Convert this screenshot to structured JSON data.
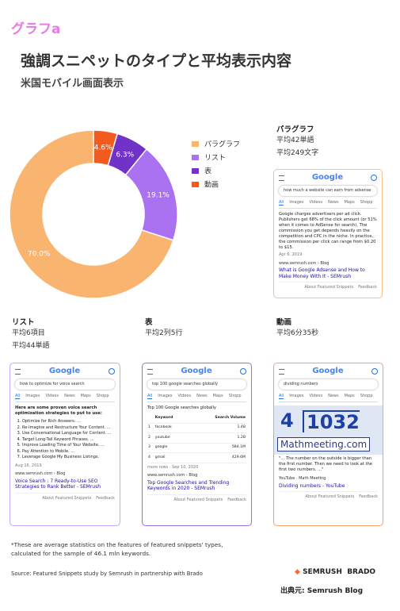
{
  "header": {
    "logo": "グラフa",
    "title": "強調スニペットのタイプと平均表示内容",
    "subtitle": "米国モバイル画面表示"
  },
  "chart_data": {
    "type": "pie",
    "donut": true,
    "categories": [
      "パラグラフ",
      "リスト",
      "表",
      "動画"
    ],
    "values": [
      70.0,
      19.1,
      6.3,
      4.6
    ],
    "value_labels": [
      "70.0%",
      "19.1%",
      "6.3%",
      "4.6%"
    ],
    "colors": [
      "#f9b470",
      "#aa72f0",
      "#7132c8",
      "#f25a1e"
    ]
  },
  "google": {
    "logo": "Google",
    "tabs": [
      "All",
      "Images",
      "Videos",
      "News",
      "Maps",
      "Shopp"
    ],
    "about": "About Featured Snippets",
    "feedback": "Feedback"
  },
  "panels": [
    {
      "title": "パラグラフ",
      "stats": [
        "平均42単語",
        "平均249文字"
      ],
      "card": {
        "query": "how much a website can earn from adsense",
        "text": "Google charges advertisers per ad click. Publishers get 68% of the click amount (or 51% when it comes to AdSense for search). The commission you get depends heavily on the competition and CPC in the niche. In practice, the commission per click can range from $0.20 to $15.",
        "date": "Apr 6, 2019",
        "url": "www.semrush.com › Blog",
        "link": "What is Google Adsense and How to Make Money With It - SEMrush"
      }
    },
    {
      "title": "リスト",
      "stats": [
        "平均6項目",
        "平均44単語"
      ],
      "card": {
        "query": "how to optimize for voice search",
        "text": "Here are some proven voice search optimization strategies to put to use:",
        "items": [
          "Optimize for Rich Answers. ...",
          "Re-Imagine and Restructure Your Content. ...",
          "Use Conversational Language for Content. ...",
          "Target Long-Tail Keyword Phrases. ...",
          "Improve Loading Time of Your Website. ...",
          "Pay Attention to Mobile. ...",
          "Leverage Google My Business Listings."
        ],
        "date": "Aug 16, 2019",
        "url": "www.semrush.com › Blog",
        "link": "Voice Search : 7 Ready-to-Use SEO Strategies to Rank Better - SEMrush"
      }
    },
    {
      "title": "表",
      "stats": [
        "平均2列5行"
      ],
      "card": {
        "query": "top 100 google searches globally",
        "text": "Top 100 Google searches globally",
        "table_header": [
          "Keyword",
          "Search Volume"
        ],
        "table_rows": [
          [
            "1",
            "facebook",
            "1.4B"
          ],
          [
            "2",
            "youtube",
            "1.2B"
          ],
          [
            "3",
            "google",
            "584.1M"
          ],
          [
            "4",
            "gmail",
            "429.6M"
          ]
        ],
        "date": "more rows · Sep 10, 2020",
        "url": "www.semrush.com › Blog",
        "link": "Top Google Searches and Trending Keywords in 2020 - SEMrush"
      }
    },
    {
      "title": "動画",
      "stats": [
        "平均6分35秒"
      ],
      "card": {
        "query": "dividing numbers",
        "video": [
          "4",
          "1032",
          "Mathmeeting.com"
        ],
        "text": "\"... The number on the outside is bigger than the first number. Then we need to look at the first two numbers. ...\"",
        "url": "YouTube · Math Meeting",
        "link": "Dividing numbers - YouTube"
      }
    }
  ],
  "footer": {
    "note": "*These are average statistics on the features of featured snippets' types, calculated for the sample of 46.1 mln keywords.",
    "source": "Source: Featured Snippets study by Semrush in partnership with Brado",
    "logos": [
      "SEMRUSH",
      "BRADO"
    ],
    "credit": "出典元: Semrush Blog"
  }
}
